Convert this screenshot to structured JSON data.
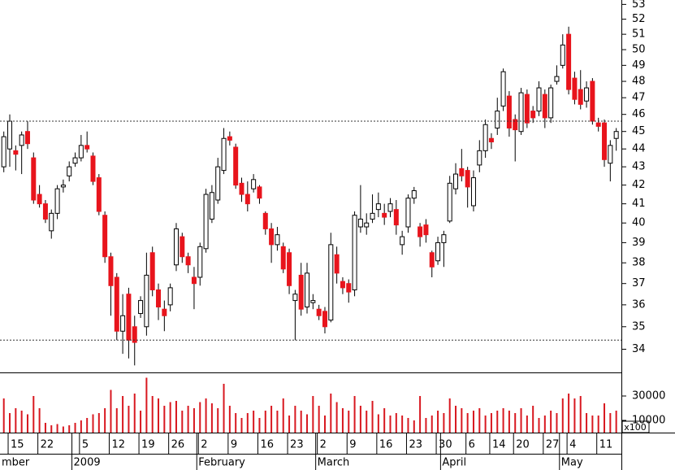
{
  "chart_data": {
    "type": "candlestick",
    "categories": [
      null,
      "15",
      null,
      null,
      null,
      null,
      "22",
      null,
      null,
      null,
      null,
      null,
      null,
      "5",
      null,
      null,
      null,
      null,
      "12",
      null,
      null,
      null,
      null,
      "19",
      null,
      null,
      null,
      null,
      "26",
      null,
      null,
      null,
      null,
      "2",
      null,
      null,
      null,
      null,
      "9",
      null,
      null,
      null,
      null,
      "16",
      null,
      null,
      null,
      null,
      "23",
      null,
      null,
      null,
      null,
      "2",
      null,
      null,
      null,
      null,
      "9",
      null,
      null,
      null,
      null,
      "16",
      null,
      null,
      null,
      null,
      "23",
      null,
      null,
      null,
      null,
      "30",
      null,
      null,
      null,
      null,
      "6",
      null,
      null,
      null,
      "14",
      null,
      null,
      null,
      "20",
      null,
      null,
      null,
      null,
      "27",
      null,
      null,
      null,
      "4",
      null,
      null,
      null,
      null,
      "11",
      null,
      null,
      null
    ],
    "months": [
      "mber",
      null,
      null,
      null,
      null,
      null,
      null,
      null,
      null,
      null,
      null,
      null,
      "2009",
      null,
      null,
      null,
      null,
      null,
      null,
      null,
      null,
      null,
      null,
      null,
      null,
      null,
      null,
      null,
      null,
      null,
      null,
      null,
      null,
      "February",
      null,
      null,
      null,
      null,
      null,
      null,
      null,
      null,
      null,
      null,
      null,
      null,
      null,
      null,
      null,
      null,
      null,
      null,
      null,
      "March",
      null,
      null,
      null,
      null,
      null,
      null,
      null,
      null,
      null,
      null,
      null,
      null,
      null,
      null,
      null,
      null,
      null,
      null,
      null,
      null,
      "April",
      null,
      null,
      null,
      null,
      null,
      null,
      null,
      null,
      null,
      null,
      null,
      null,
      null,
      null,
      null,
      null,
      null,
      null,
      null,
      "May",
      null,
      null,
      null,
      null,
      null,
      null,
      null,
      null
    ],
    "open": [
      43.0,
      44.0,
      43.9,
      44.2,
      45.0,
      43.5,
      41.5,
      41.0,
      39.6,
      40.5,
      41.9,
      42.5,
      43.2,
      43.5,
      44.2,
      43.6,
      42.4,
      40.4,
      38.3,
      37.3,
      34.8,
      36.5,
      35.0,
      35.6,
      35.0,
      38.5,
      36.7,
      35.8,
      36.0,
      37.9,
      39.3,
      38.3,
      37.3,
      37.3,
      38.7,
      40.2,
      41.2,
      42.8,
      44.7,
      44.1,
      42.1,
      41.5,
      41.8,
      41.9,
      40.5,
      39.7,
      38.9,
      38.8,
      38.5,
      36.2,
      37.4,
      35.9,
      36.1,
      35.8,
      35.7,
      35.3,
      38.4,
      37.1,
      37.0,
      36.7,
      39.8,
      39.8,
      40.2,
      40.7,
      40.5,
      40.6,
      40.7,
      38.9,
      39.8,
      41.3,
      39.8,
      39.9,
      38.5,
      38.1,
      39.0,
      40.1,
      41.8,
      42.9,
      42.8,
      40.9,
      43.1,
      43.9,
      44.6,
      45.2,
      46.5,
      47.1,
      45.7,
      45.0,
      47.2,
      46.2,
      46.2,
      47.2,
      45.8,
      48.0,
      49.0,
      51.0,
      48.2,
      47.5,
      46.8,
      48.0,
      45.5,
      45.5,
      43.2,
      44.6
    ],
    "high": [
      45.0,
      46.0,
      44.2,
      45.0,
      45.6,
      43.8,
      42.0,
      41.2,
      40.7,
      42.0,
      42.3,
      43.3,
      43.8,
      44.8,
      45.0,
      43.8,
      42.6,
      40.6,
      38.5,
      37.5,
      36.5,
      36.8,
      35.5,
      36.4,
      38.5,
      38.8,
      37.0,
      36.2,
      37.0,
      40.0,
      39.5,
      38.5,
      37.8,
      39.0,
      41.8,
      42.0,
      43.5,
      45.2,
      45.0,
      44.3,
      42.4,
      42.2,
      42.6,
      42.0,
      40.6,
      40.0,
      39.8,
      39.0,
      38.7,
      36.7,
      38.0,
      38.0,
      36.5,
      36.0,
      35.9,
      39.5,
      38.8,
      37.3,
      37.2,
      40.6,
      42.0,
      40.5,
      41.5,
      41.6,
      41.0,
      41.3,
      41.2,
      39.6,
      41.5,
      41.9,
      40.0,
      40.2,
      38.6,
      39.3,
      39.6,
      42.5,
      43.2,
      44.0,
      43.0,
      42.8,
      44.5,
      45.7,
      44.9,
      47.0,
      48.8,
      47.4,
      46.0,
      47.6,
      47.5,
      46.5,
      48.0,
      47.5,
      47.8,
      49.0,
      51.0,
      51.5,
      48.6,
      48.7,
      48.0,
      48.2,
      45.8,
      45.7,
      44.5,
      45.2
    ],
    "low": [
      42.7,
      43.0,
      42.8,
      42.6,
      44.0,
      41.0,
      40.8,
      40.0,
      39.2,
      40.2,
      41.6,
      42.2,
      43.0,
      43.3,
      43.8,
      42.0,
      40.4,
      38.0,
      35.5,
      34.4,
      33.8,
      33.6,
      33.3,
      35.4,
      34.6,
      36.4,
      35.3,
      34.8,
      35.7,
      37.6,
      38.0,
      37.5,
      35.8,
      36.9,
      38.5,
      40.0,
      41.0,
      42.6,
      44.2,
      41.8,
      41.1,
      40.6,
      41.6,
      41.0,
      39.4,
      38.0,
      38.6,
      37.5,
      36.5,
      34.4,
      35.5,
      35.6,
      35.8,
      35.3,
      34.7,
      35.2,
      37.0,
      36.5,
      36.1,
      36.4,
      39.5,
      39.4,
      40.0,
      40.3,
      39.9,
      40.3,
      39.4,
      38.4,
      39.5,
      41.0,
      38.8,
      39.0,
      37.3,
      37.9,
      37.8,
      40.0,
      41.5,
      42.2,
      40.8,
      40.6,
      42.7,
      43.5,
      44.0,
      44.8,
      46.2,
      44.7,
      43.3,
      44.8,
      45.2,
      45.5,
      45.9,
      45.2,
      45.5,
      47.8,
      48.8,
      47.2,
      46.6,
      46.3,
      46.4,
      45.4,
      45.0,
      43.0,
      42.2,
      43.9
    ],
    "close": [
      44.7,
      45.6,
      43.7,
      44.8,
      44.3,
      41.2,
      41.0,
      40.2,
      40.5,
      41.8,
      42.0,
      43.0,
      43.5,
      44.2,
      44.0,
      42.2,
      40.6,
      38.3,
      36.9,
      34.8,
      35.5,
      34.4,
      34.3,
      36.2,
      37.4,
      36.7,
      35.9,
      35.5,
      36.8,
      39.7,
      38.3,
      37.9,
      37.0,
      38.8,
      41.5,
      41.6,
      43.0,
      44.6,
      44.5,
      42.0,
      41.5,
      41.0,
      42.3,
      41.3,
      39.7,
      38.9,
      39.4,
      37.7,
      36.9,
      36.5,
      35.8,
      37.5,
      36.2,
      35.5,
      35.0,
      38.9,
      37.5,
      36.8,
      36.6,
      40.4,
      40.2,
      40.0,
      40.5,
      41.0,
      40.3,
      41.0,
      39.9,
      39.3,
      41.3,
      41.7,
      39.3,
      39.4,
      37.8,
      39.0,
      39.4,
      42.1,
      42.6,
      42.5,
      41.9,
      42.4,
      43.9,
      45.4,
      44.4,
      46.2,
      48.6,
      45.2,
      45.1,
      47.3,
      45.5,
      45.8,
      47.6,
      45.8,
      47.6,
      48.3,
      50.3,
      47.5,
      46.9,
      46.6,
      47.6,
      45.6,
      45.3,
      43.4,
      44.2,
      45.0
    ],
    "volume": [
      28000,
      16000,
      20000,
      18000,
      15000,
      30000,
      20000,
      8000,
      6000,
      7000,
      5000,
      6000,
      8000,
      10000,
      12000,
      15000,
      16000,
      20000,
      35000,
      20000,
      30000,
      22000,
      32000,
      18000,
      45000,
      30000,
      28000,
      22000,
      25000,
      26000,
      18000,
      22000,
      20000,
      25000,
      28000,
      24000,
      20000,
      40000,
      22000,
      16000,
      12000,
      16000,
      18000,
      12000,
      18000,
      22000,
      18000,
      28000,
      14000,
      22000,
      18000,
      15000,
      30000,
      22000,
      14000,
      32000,
      25000,
      20000,
      18000,
      30000,
      22000,
      18000,
      26000,
      15000,
      20000,
      14000,
      16000,
      14000,
      12000,
      10000,
      30000,
      12000,
      14000,
      18000,
      16000,
      28000,
      22000,
      20000,
      16000,
      18000,
      20000,
      14000,
      16000,
      18000,
      20000,
      18000,
      16000,
      20000,
      14000,
      22000,
      12000,
      14000,
      18000,
      16000,
      28000,
      32000,
      28000,
      30000,
      16000,
      14000,
      14000,
      24000,
      16000,
      18000
    ],
    "up_color": "#ffffff",
    "down_color": "#e8141c",
    "volume_color": "#d81820",
    "log_scale": true,
    "ylim": [
      33,
      53.3
    ],
    "yticks": [
      34,
      35,
      36,
      37,
      38,
      39,
      40,
      41,
      42,
      43,
      44,
      45,
      46,
      47,
      48,
      49,
      50,
      51,
      52,
      53
    ],
    "hlines": [
      45.6,
      34.4
    ],
    "volume_ylim": [
      0,
      48000
    ],
    "volume_yticks": [
      10000,
      30000
    ],
    "volume_unit": "x100"
  }
}
